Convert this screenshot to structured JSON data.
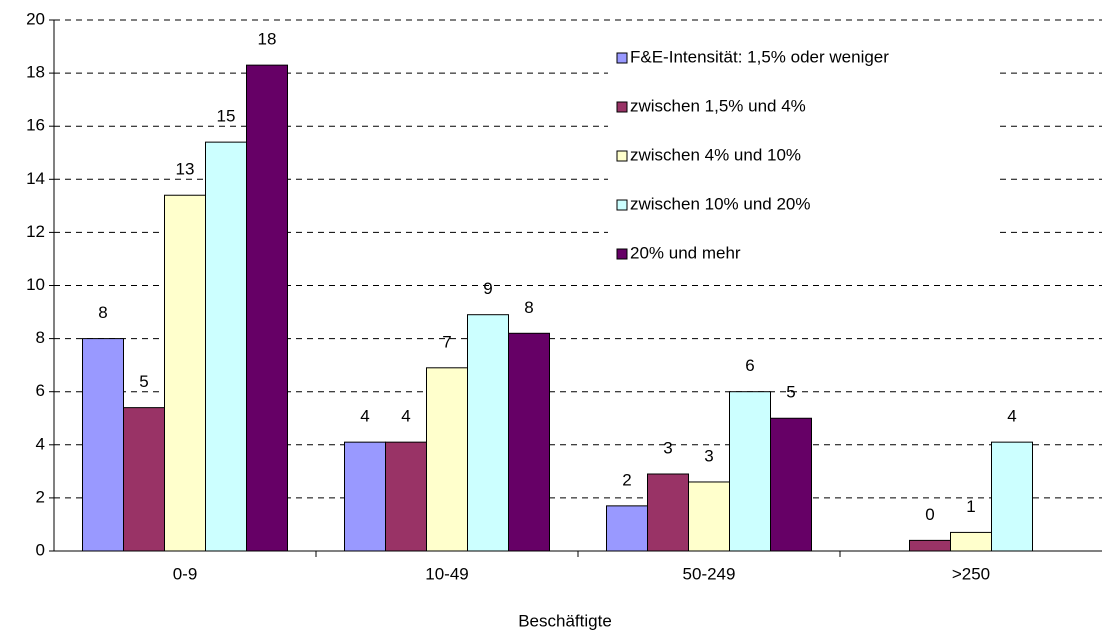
{
  "chart_data": {
    "type": "bar",
    "x_label": "Beschäftigte",
    "categories": [
      "0-9",
      "10-49",
      "50-249",
      ">250"
    ],
    "series": [
      {
        "name": "F&E-Intensität: 1,5% oder weniger",
        "color": "#9999ff",
        "values": [
          8.0,
          4.1,
          1.7,
          null
        ],
        "value_labels": [
          "8",
          "4",
          "2",
          null
        ]
      },
      {
        "name": "zwischen 1,5% und 4%",
        "color": "#993366",
        "values": [
          5.4,
          4.1,
          2.9,
          0.4
        ],
        "value_labels": [
          "5",
          "4",
          "3",
          "0"
        ]
      },
      {
        "name": "zwischen 4% und 10%",
        "color": "#ffffcc",
        "values": [
          13.4,
          6.9,
          2.6,
          0.7
        ],
        "value_labels": [
          "13",
          "7",
          "3",
          "1"
        ]
      },
      {
        "name": "zwischen 10% und 20%",
        "color": "#ccffff",
        "values": [
          15.4,
          8.9,
          6.0,
          4.1
        ],
        "value_labels": [
          "15",
          "9",
          "6",
          "4"
        ]
      },
      {
        "name": "20% und mehr",
        "color": "#660066",
        "values": [
          18.3,
          8.2,
          5.0,
          null
        ],
        "value_labels": [
          "18",
          "8",
          "5",
          null
        ]
      }
    ],
    "ylim": [
      0,
      20
    ],
    "yticks": [
      0,
      2,
      4,
      6,
      8,
      10,
      12,
      14,
      16,
      18,
      20
    ],
    "grid": true,
    "legend": "upper right"
  }
}
